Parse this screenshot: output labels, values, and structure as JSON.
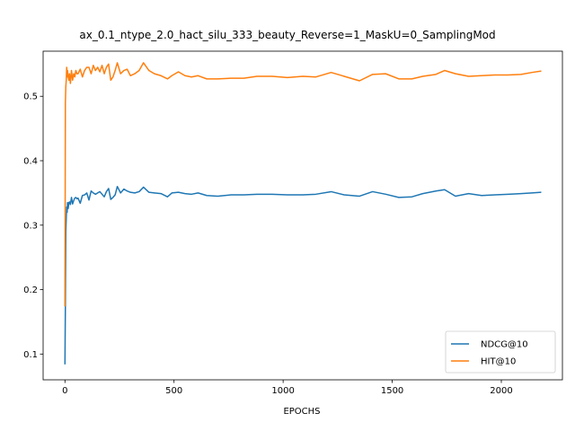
{
  "chart_data": {
    "type": "line",
    "title": "ax_0.1_ntype_2.0_hact_silu_333_beauty_Reverse=1_MaskU=0_SamplingMod",
    "xlabel": "EPOCHS",
    "ylabel": "",
    "xlim": [
      -100,
      2280
    ],
    "ylim": [
      0.06,
      0.57
    ],
    "xticks": [
      0,
      500,
      1000,
      1500,
      2000
    ],
    "xtick_labels": [
      "0",
      "500",
      "1000",
      "1500",
      "2000"
    ],
    "yticks": [
      0.1,
      0.2,
      0.3,
      0.4,
      0.5
    ],
    "ytick_labels": [
      "0.1",
      "0.2",
      "0.3",
      "0.4",
      "0.5"
    ],
    "grid": false,
    "legend_position": "lower-right",
    "series": [
      {
        "name": "NDCG@10",
        "color": "#1f77b4",
        "x": [
          0,
          2,
          4,
          6,
          8,
          10,
          12,
          15,
          18,
          21,
          25,
          30,
          35,
          40,
          45,
          50,
          55,
          60,
          70,
          80,
          90,
          100,
          110,
          120,
          130,
          140,
          150,
          160,
          170,
          180,
          190,
          200,
          210,
          220,
          230,
          240,
          255,
          270,
          285,
          300,
          320,
          340,
          360,
          385,
          410,
          440,
          470,
          490,
          520,
          550,
          580,
          610,
          650,
          700,
          760,
          820,
          880,
          950,
          1020,
          1090,
          1150,
          1220,
          1280,
          1350,
          1410,
          1470,
          1530,
          1590,
          1640,
          1700,
          1740,
          1790,
          1850,
          1910,
          1970,
          2030,
          2090,
          2140,
          2180
        ],
        "values": [
          0.085,
          0.175,
          0.29,
          0.31,
          0.328,
          0.32,
          0.335,
          0.326,
          0.335,
          0.336,
          0.332,
          0.343,
          0.333,
          0.338,
          0.342,
          0.343,
          0.341,
          0.342,
          0.334,
          0.346,
          0.347,
          0.35,
          0.339,
          0.353,
          0.35,
          0.348,
          0.35,
          0.352,
          0.348,
          0.344,
          0.352,
          0.357,
          0.34,
          0.343,
          0.347,
          0.36,
          0.35,
          0.356,
          0.353,
          0.351,
          0.35,
          0.352,
          0.359,
          0.351,
          0.35,
          0.349,
          0.344,
          0.35,
          0.351,
          0.349,
          0.348,
          0.35,
          0.346,
          0.345,
          0.347,
          0.347,
          0.348,
          0.348,
          0.347,
          0.347,
          0.348,
          0.352,
          0.347,
          0.345,
          0.352,
          0.348,
          0.343,
          0.344,
          0.349,
          0.353,
          0.355,
          0.345,
          0.349,
          0.346,
          0.347,
          0.348,
          0.349,
          0.35,
          0.351
        ]
      },
      {
        "name": "HIT@10",
        "color": "#ff7f0e",
        "x": [
          0,
          2,
          4,
          6,
          8,
          10,
          12,
          15,
          18,
          21,
          25,
          30,
          35,
          40,
          45,
          50,
          55,
          60,
          70,
          80,
          90,
          100,
          110,
          120,
          130,
          140,
          150,
          160,
          170,
          180,
          190,
          200,
          210,
          220,
          230,
          240,
          255,
          270,
          285,
          300,
          320,
          340,
          360,
          385,
          410,
          440,
          470,
          490,
          520,
          550,
          580,
          610,
          650,
          700,
          760,
          820,
          880,
          950,
          1020,
          1090,
          1150,
          1220,
          1280,
          1350,
          1410,
          1470,
          1530,
          1590,
          1640,
          1700,
          1740,
          1790,
          1850,
          1910,
          1970,
          2030,
          2090,
          2140,
          2180
        ],
        "values": [
          0.175,
          0.49,
          0.515,
          0.525,
          0.545,
          0.53,
          0.54,
          0.53,
          0.525,
          0.535,
          0.52,
          0.54,
          0.525,
          0.535,
          0.53,
          0.54,
          0.535,
          0.535,
          0.542,
          0.53,
          0.54,
          0.545,
          0.545,
          0.535,
          0.548,
          0.54,
          0.545,
          0.538,
          0.548,
          0.535,
          0.545,
          0.55,
          0.525,
          0.53,
          0.54,
          0.552,
          0.535,
          0.54,
          0.542,
          0.532,
          0.535,
          0.54,
          0.552,
          0.54,
          0.535,
          0.532,
          0.527,
          0.532,
          0.538,
          0.532,
          0.53,
          0.532,
          0.527,
          0.527,
          0.528,
          0.528,
          0.531,
          0.531,
          0.529,
          0.531,
          0.53,
          0.537,
          0.531,
          0.524,
          0.534,
          0.535,
          0.527,
          0.527,
          0.531,
          0.534,
          0.54,
          0.535,
          0.531,
          0.532,
          0.533,
          0.533,
          0.534,
          0.537,
          0.539
        ]
      }
    ]
  }
}
